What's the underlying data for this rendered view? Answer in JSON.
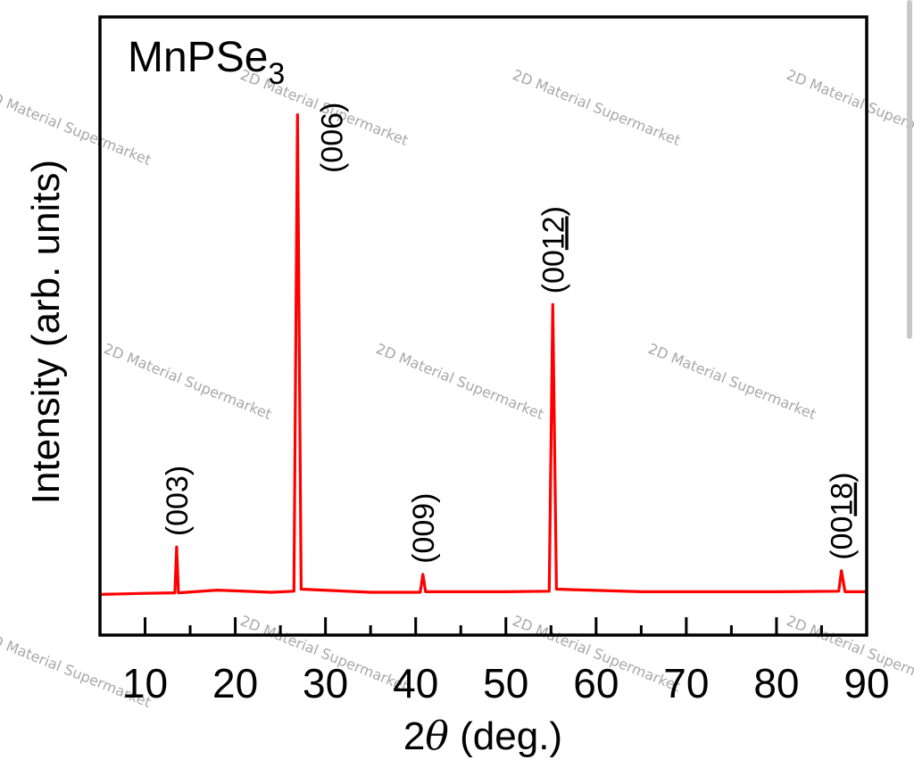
{
  "chart_data": {
    "type": "line",
    "compound": {
      "base": "MnPSe",
      "subscript": "3"
    },
    "xlabel": {
      "prefix": "2",
      "symbol": "θ",
      "suffix": " (deg.)"
    },
    "ylabel": "Intensity (arb. units)",
    "xlim": [
      5,
      90
    ],
    "ylim": [
      0,
      1.1
    ],
    "x_ticks": [
      10,
      20,
      30,
      40,
      50,
      60,
      70,
      80,
      90
    ],
    "x_minor_ticks": [
      15,
      25,
      35,
      45,
      55,
      65,
      75,
      85
    ],
    "series": [
      {
        "color": "#ff0000",
        "baseline": 0.045,
        "points": [
          [
            5,
            0.04
          ],
          [
            10,
            0.042
          ],
          [
            13.3,
            0.043
          ],
          [
            13.5,
            0.13
          ],
          [
            13.7,
            0.043
          ],
          [
            18,
            0.048
          ],
          [
            24,
            0.044
          ],
          [
            26.5,
            0.046
          ],
          [
            26.9,
            0.95
          ],
          [
            27.3,
            0.05
          ],
          [
            35,
            0.044
          ],
          [
            40.5,
            0.044
          ],
          [
            40.8,
            0.078
          ],
          [
            41.1,
            0.045
          ],
          [
            50,
            0.045
          ],
          [
            54.8,
            0.046
          ],
          [
            55.2,
            0.59
          ],
          [
            55.6,
            0.05
          ],
          [
            65,
            0.045
          ],
          [
            80,
            0.045
          ],
          [
            86.9,
            0.046
          ],
          [
            87.2,
            0.085
          ],
          [
            87.6,
            0.045
          ],
          [
            90,
            0.045
          ]
        ]
      }
    ],
    "annotations": [
      {
        "x": 13.5,
        "y": 0.13,
        "main": "(00",
        "ul": "3",
        "close": ")",
        "underline": false
      },
      {
        "x": 26.9,
        "y": 0.95,
        "main": "(00",
        "ul": "6",
        "close": ")",
        "underline": false
      },
      {
        "x": 40.8,
        "y": 0.078,
        "main": "(00",
        "ul": "9",
        "close": ")",
        "underline": false
      },
      {
        "x": 55.2,
        "y": 0.59,
        "main": "(00",
        "ul": "12",
        "close": ")",
        "underline": true
      },
      {
        "x": 87.2,
        "y": 0.085,
        "main": "(00",
        "ul": "18",
        "close": ")",
        "underline": true
      }
    ],
    "grid": false,
    "watermark": "2D Material Supermarket"
  }
}
